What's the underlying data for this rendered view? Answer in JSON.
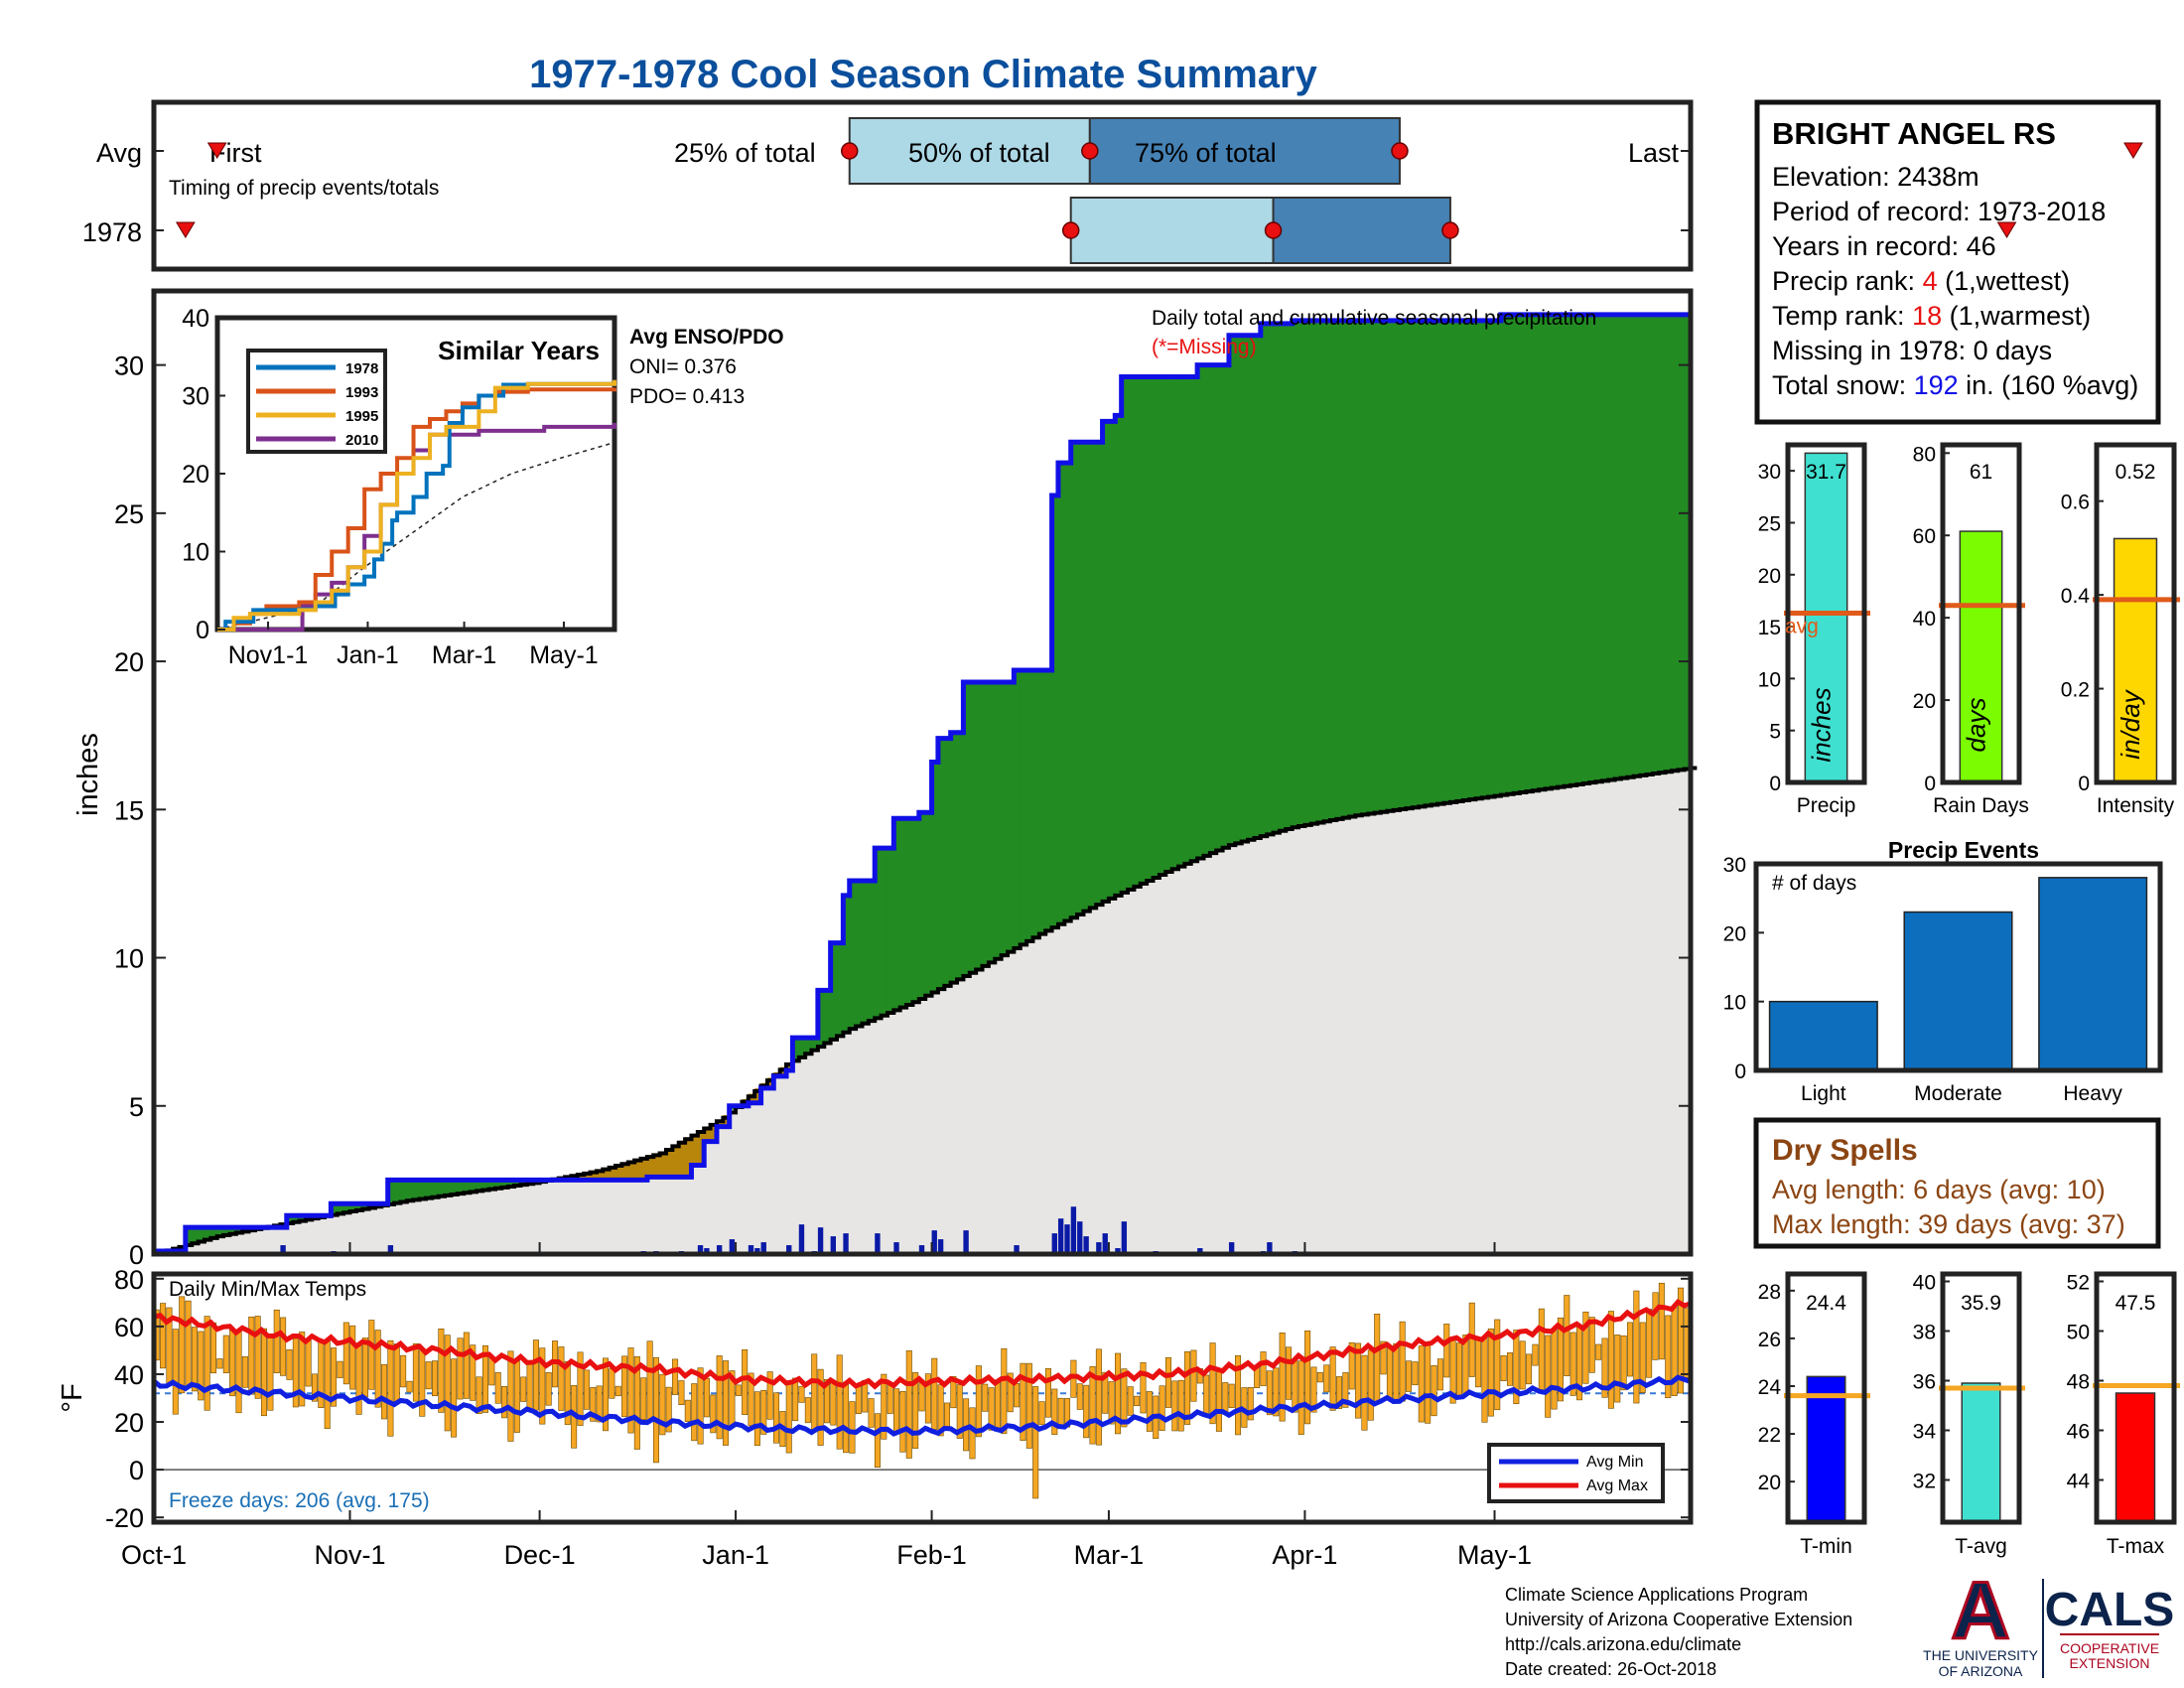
{
  "title": "1977-1978 Cool Season Climate Summary",
  "colors": {
    "title": "#0b4f9c",
    "cum_line": "#1010e6",
    "above_fill": "#228b22",
    "below_fill": "#b8860b",
    "normal_fill": "#e8e6e4",
    "daily_bar": "#0a1aa6",
    "temp_bar": "#f5a623",
    "avg_min": "#1020e0",
    "avg_max": "#e81010",
    "avg_line_small": "#e05a1a",
    "temp_avg_line": "#f5a623",
    "missing": "#e81010",
    "snow": "#1010e6",
    "rank": "#e81010",
    "dry_spell": "#8b4513",
    "freeze": "#1a6fb5",
    "events_bar": "#0d6ebd",
    "precip_bar": "#40e0d0",
    "raindays_bar": "#7cfc00",
    "intensity_bar": "#ffd700",
    "tmin_bar": "#0000ff",
    "tavg_bar": "#40e0d0",
    "tmax_bar": "#ff0000",
    "cals_blue": "#0c234b",
    "ua_red": "#ab0520"
  },
  "timing": {
    "row_labels": [
      "Avg",
      "1978"
    ],
    "first_label": "First",
    "last_label": "Last",
    "p25_label": "25% of total",
    "p50_label": "50% of total",
    "p75_label": "75% of total",
    "caption": "Timing of precip events/totals",
    "avg": {
      "first": 10,
      "p25": 110,
      "p50": 148,
      "p75": 197,
      "last": 313
    },
    "y1978": {
      "first": 5,
      "p25": 145,
      "p50": 177,
      "p75": 205,
      "last": 293
    }
  },
  "station": {
    "name": "BRIGHT ANGEL RS",
    "elevation": "Elevation: 2438m",
    "period": "Period of record: 1973-2018",
    "years": "Years in record: 46",
    "precip_rank_pre": "Precip rank: ",
    "precip_rank_val": "4",
    "precip_rank_post": " (1,wettest)",
    "temp_rank_pre": "Temp rank: ",
    "temp_rank_val": "18",
    "temp_rank_post": " (1,warmest)",
    "missing": "Missing in 1978: 0 days",
    "snow_pre": "Total snow: ",
    "snow_val": "192",
    "snow_post": " in. (160 %avg)"
  },
  "main": {
    "ylabel": "inches",
    "yticks": [
      0,
      5,
      10,
      15,
      20,
      25,
      30
    ],
    "ylim": [
      0,
      32.5
    ],
    "annot_title": "Daily total and cumulative seasonal precipitation",
    "annot_missing": "(*=Missing)",
    "enso_title": "Avg ENSO/PDO",
    "oni": "ONI= 0.376",
    "pdo": "PDO= 0.413"
  },
  "xaxis": {
    "ticks": [
      {
        "label": "Oct-1",
        "day": 0
      },
      {
        "label": "Nov-1",
        "day": 31
      },
      {
        "label": "Dec-1",
        "day": 61
      },
      {
        "label": "Jan-1",
        "day": 92
      },
      {
        "label": "Feb-1",
        "day": 123
      },
      {
        "label": "Mar-1",
        "day": 151
      },
      {
        "label": "Apr-1",
        "day": 182
      },
      {
        "label": "May-1",
        "day": 212
      }
    ],
    "ndays": 243
  },
  "chart_data": {
    "type": "area",
    "cumulative_observed": [
      [
        0,
        0.1
      ],
      [
        5,
        0.9
      ],
      [
        20,
        0.9
      ],
      [
        21,
        1.3
      ],
      [
        27,
        1.3
      ],
      [
        28,
        1.7
      ],
      [
        36,
        1.7
      ],
      [
        37,
        2.5
      ],
      [
        77,
        2.5
      ],
      [
        78,
        2.6
      ],
      [
        85,
        3.0
      ],
      [
        87,
        3.8
      ],
      [
        89,
        4.3
      ],
      [
        91,
        5.0
      ],
      [
        94,
        5.1
      ],
      [
        96,
        5.6
      ],
      [
        98,
        6.0
      ],
      [
        100,
        6.2
      ],
      [
        101,
        7.3
      ],
      [
        104,
        7.3
      ],
      [
        105,
        8.9
      ],
      [
        107,
        10.5
      ],
      [
        109,
        12.1
      ],
      [
        110,
        12.6
      ],
      [
        114,
        13.7
      ],
      [
        116,
        13.7
      ],
      [
        117,
        14.7
      ],
      [
        120,
        14.7
      ],
      [
        121,
        14.9
      ],
      [
        123,
        16.6
      ],
      [
        124,
        17.4
      ],
      [
        126,
        17.6
      ],
      [
        128,
        19.3
      ],
      [
        135,
        19.3
      ],
      [
        136,
        19.7
      ],
      [
        141,
        19.7
      ],
      [
        142,
        25.6
      ],
      [
        143,
        26.7
      ],
      [
        145,
        27.4
      ],
      [
        150,
        28.1
      ],
      [
        152,
        28.3
      ],
      [
        153,
        29.6
      ],
      [
        158,
        29.6
      ],
      [
        163,
        29.6
      ],
      [
        165,
        30.0
      ],
      [
        169,
        30.0
      ],
      [
        170,
        31.0
      ],
      [
        175,
        31.4
      ],
      [
        180,
        31.5
      ],
      [
        195,
        31.5
      ],
      [
        213,
        31.7
      ],
      [
        243,
        31.7
      ]
    ],
    "cumulative_normal": [
      [
        0,
        0
      ],
      [
        10,
        0.6
      ],
      [
        20,
        1.0
      ],
      [
        30,
        1.4
      ],
      [
        40,
        1.8
      ],
      [
        50,
        2.1
      ],
      [
        60,
        2.4
      ],
      [
        70,
        2.8
      ],
      [
        80,
        3.4
      ],
      [
        90,
        4.6
      ],
      [
        100,
        6.4
      ],
      [
        110,
        7.6
      ],
      [
        120,
        8.5
      ],
      [
        130,
        9.6
      ],
      [
        140,
        10.8
      ],
      [
        150,
        11.9
      ],
      [
        160,
        12.9
      ],
      [
        170,
        13.8
      ],
      [
        180,
        14.4
      ],
      [
        190,
        14.8
      ],
      [
        200,
        15.1
      ],
      [
        210,
        15.4
      ],
      [
        220,
        15.7
      ],
      [
        230,
        16.0
      ],
      [
        243,
        16.4
      ]
    ],
    "daily_precip": [
      [
        20,
        0.3
      ],
      [
        28,
        0.1
      ],
      [
        37,
        0.3
      ],
      [
        77,
        0.1
      ],
      [
        79,
        0.1
      ],
      [
        83,
        0.1
      ],
      [
        86,
        0.3
      ],
      [
        87,
        0.2
      ],
      [
        89,
        0.3
      ],
      [
        91,
        0.5
      ],
      [
        94,
        0.3
      ],
      [
        95,
        0.2
      ],
      [
        96,
        0.4
      ],
      [
        100,
        0.3
      ],
      [
        102,
        1.0
      ],
      [
        104,
        0.1
      ],
      [
        105,
        0.9
      ],
      [
        107,
        0.6
      ],
      [
        109,
        0.7
      ],
      [
        114,
        0.7
      ],
      [
        117,
        0.4
      ],
      [
        121,
        0.3
      ],
      [
        123,
        0.8
      ],
      [
        124,
        0.5
      ],
      [
        128,
        0.8
      ],
      [
        136,
        0.3
      ],
      [
        142,
        0.7
      ],
      [
        143,
        1.2
      ],
      [
        144,
        1.0
      ],
      [
        145,
        1.6
      ],
      [
        146,
        1.1
      ],
      [
        147,
        0.6
      ],
      [
        149,
        0.4
      ],
      [
        150,
        0.7
      ],
      [
        152,
        0.2
      ],
      [
        153,
        1.1
      ],
      [
        158,
        0.1
      ],
      [
        165,
        0.2
      ],
      [
        170,
        0.4
      ],
      [
        175,
        0.1
      ],
      [
        176,
        0.4
      ],
      [
        180,
        0.1
      ]
    ]
  },
  "similar": {
    "title": "Similar Years",
    "yticks": [
      0,
      10,
      20,
      30,
      40
    ],
    "ylim": [
      0,
      40
    ],
    "xticks": [
      "Nov1-1",
      "Jan-1",
      "Mar-1",
      "May-1"
    ],
    "legend": [
      "1978",
      "1993",
      "1995",
      "2010"
    ],
    "series_colors": [
      "#0072bd",
      "#d95319",
      "#edb120",
      "#7e2f8e"
    ],
    "series": [
      [
        [
          0,
          0
        ],
        [
          5,
          1.0
        ],
        [
          20,
          1.0
        ],
        [
          22,
          2.5
        ],
        [
          37,
          2.5
        ],
        [
          50,
          2.6
        ],
        [
          60,
          3.0
        ],
        [
          72,
          4.5
        ],
        [
          80,
          5.8
        ],
        [
          90,
          6.8
        ],
        [
          96,
          9.0
        ],
        [
          101,
          11.0
        ],
        [
          107,
          14.0
        ],
        [
          110,
          15.0
        ],
        [
          120,
          17.0
        ],
        [
          128,
          20.0
        ],
        [
          138,
          21.0
        ],
        [
          142,
          26.5
        ],
        [
          150,
          28.5
        ],
        [
          160,
          30.0
        ],
        [
          175,
          31.4
        ],
        [
          190,
          31.5
        ],
        [
          243,
          31.7
        ]
      ],
      [
        [
          0,
          0
        ],
        [
          10,
          0.8
        ],
        [
          20,
          2.0
        ],
        [
          30,
          3.0
        ],
        [
          40,
          3.0
        ],
        [
          50,
          3.5
        ],
        [
          60,
          7.0
        ],
        [
          70,
          10.0
        ],
        [
          80,
          13.0
        ],
        [
          90,
          18.0
        ],
        [
          100,
          20.0
        ],
        [
          110,
          22.0
        ],
        [
          120,
          26.0
        ],
        [
          130,
          27.0
        ],
        [
          140,
          28.0
        ],
        [
          150,
          29.0
        ],
        [
          160,
          30.0
        ],
        [
          170,
          30.5
        ],
        [
          190,
          30.8
        ],
        [
          243,
          31.0
        ]
      ],
      [
        [
          0,
          0
        ],
        [
          10,
          1.5
        ],
        [
          20,
          2.0
        ],
        [
          40,
          2.0
        ],
        [
          50,
          2.5
        ],
        [
          60,
          3.5
        ],
        [
          70,
          5.0
        ],
        [
          80,
          8.0
        ],
        [
          90,
          10.0
        ],
        [
          100,
          16.0
        ],
        [
          110,
          20.0
        ],
        [
          120,
          22.0
        ],
        [
          130,
          25.0
        ],
        [
          140,
          26.0
        ],
        [
          150,
          26.0
        ],
        [
          160,
          28.0
        ],
        [
          170,
          31.0
        ],
        [
          190,
          31.5
        ],
        [
          243,
          32.0
        ]
      ],
      [
        [
          0,
          0
        ],
        [
          30,
          0
        ],
        [
          40,
          0
        ],
        [
          50,
          0
        ],
        [
          52,
          3.0
        ],
        [
          60,
          4.5
        ],
        [
          70,
          6.0
        ],
        [
          80,
          8.0
        ],
        [
          90,
          12.0
        ],
        [
          100,
          16.0
        ],
        [
          110,
          20.0
        ],
        [
          120,
          23.0
        ],
        [
          130,
          25.0
        ],
        [
          140,
          25.0
        ],
        [
          150,
          25.0
        ],
        [
          160,
          25.5
        ],
        [
          200,
          26.0
        ],
        [
          243,
          26.5
        ]
      ]
    ],
    "normal": [
      [
        0,
        0
      ],
      [
        30,
        1.5
      ],
      [
        60,
        3.0
      ],
      [
        90,
        8.0
      ],
      [
        120,
        12.5
      ],
      [
        150,
        17.0
      ],
      [
        180,
        20.0
      ],
      [
        210,
        22.0
      ],
      [
        243,
        24.0
      ]
    ]
  },
  "small_bars": [
    {
      "label": "Precip",
      "unit": "inches",
      "value": 31.7,
      "value_label": "31.7",
      "avg": 16.3,
      "avg_label": "avg",
      "ylim": [
        0,
        32.5
      ],
      "yticks": [
        0,
        5,
        10,
        15,
        20,
        25,
        30
      ]
    },
    {
      "label": "Rain Days",
      "unit": "days",
      "value": 61,
      "value_label": "61",
      "avg": 43,
      "ylim": [
        0,
        82
      ],
      "yticks": [
        0,
        20,
        40,
        60,
        80
      ]
    },
    {
      "label": "Intensity",
      "unit": "in/day",
      "value": 0.52,
      "value_label": "0.52",
      "avg": 0.39,
      "ylim": [
        0,
        0.72
      ],
      "yticks": [
        0,
        0.2,
        0.4,
        0.6
      ]
    }
  ],
  "events": {
    "title": "Precip Events",
    "ylabel": "# of days",
    "categories": [
      "Light",
      "Moderate",
      "Heavy"
    ],
    "values": [
      10,
      23,
      28
    ],
    "ylim": [
      0,
      30
    ],
    "yticks": [
      0,
      10,
      20,
      30
    ]
  },
  "dry_spells": {
    "title": "Dry Spells",
    "avg_line": "Avg length: 6 days (avg: 10)",
    "max_line": "Max length: 39 days (avg: 37)"
  },
  "temps": {
    "label": "Daily Min/Max Temps",
    "ylabel": "°F",
    "yticks": [
      -20,
      0,
      20,
      40,
      60,
      80
    ],
    "ylim": [
      -22,
      82
    ],
    "freeze": "Freeze days: 206 (avg. 175)",
    "legend_min": "Avg Min",
    "legend_max": "Avg Max",
    "avg_max_anchors": [
      [
        0,
        64
      ],
      [
        20,
        56
      ],
      [
        45,
        50
      ],
      [
        61,
        45
      ],
      [
        80,
        42
      ],
      [
        92,
        38
      ],
      [
        110,
        36
      ],
      [
        140,
        38
      ],
      [
        160,
        40
      ],
      [
        175,
        44
      ],
      [
        190,
        50
      ],
      [
        200,
        53
      ],
      [
        212,
        56
      ],
      [
        225,
        60
      ],
      [
        243,
        70
      ]
    ],
    "avg_min_anchors": [
      [
        0,
        36
      ],
      [
        20,
        32
      ],
      [
        40,
        28
      ],
      [
        61,
        24
      ],
      [
        80,
        20
      ],
      [
        100,
        17
      ],
      [
        120,
        16
      ],
      [
        140,
        18
      ],
      [
        160,
        22
      ],
      [
        180,
        26
      ],
      [
        200,
        30
      ],
      [
        212,
        32
      ],
      [
        230,
        35
      ],
      [
        243,
        38
      ]
    ]
  },
  "temp_bars": [
    {
      "label": "T-min",
      "value": 24.4,
      "value_label": "24.4",
      "avg": 23.6,
      "ylim": [
        18.3,
        28.7
      ],
      "yticks": [
        20,
        22,
        24,
        26,
        28
      ]
    },
    {
      "label": "T-avg",
      "value": 35.9,
      "value_label": "35.9",
      "avg": 35.7,
      "ylim": [
        30.3,
        40.3
      ],
      "yticks": [
        32,
        34,
        36,
        38,
        40
      ]
    },
    {
      "label": "T-max",
      "value": 47.5,
      "value_label": "47.5",
      "avg": 47.8,
      "ylim": [
        42.3,
        52.3
      ],
      "yticks": [
        44,
        46,
        48,
        50,
        52
      ]
    }
  ],
  "footer": {
    "line1": "Climate Science Applications Program",
    "line2": "University of Arizona Cooperative Extension",
    "line3": "http://cals.arizona.edu/climate",
    "line4": " Date created: 26-Oct-2018",
    "ua_a": "A",
    "ua_line1": "THE UNIVERSITY",
    "ua_line2": "OF ARIZONA",
    "cals": "CALS",
    "cals_line1": "COOPERATIVE",
    "cals_line2": "EXTENSION"
  }
}
